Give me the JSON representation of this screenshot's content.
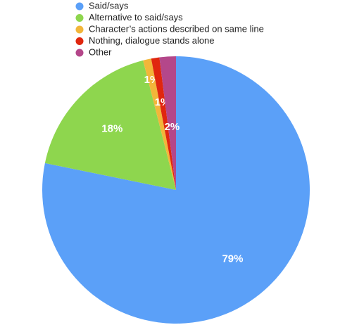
{
  "chart_data": {
    "type": "pie",
    "categories": [
      "Said/says",
      "Alternative to said/says",
      "Character’s actions described on same line",
      "Nothing, dialogue stands alone",
      "Other"
    ],
    "values": [
      79,
      18,
      1,
      1,
      2
    ],
    "value_labels": [
      "79%",
      "18%",
      "1%",
      "1%",
      "2%"
    ],
    "colors": [
      "#5ba0f8",
      "#8ed64e",
      "#f2b63a",
      "#e0270f",
      "#b4478a"
    ],
    "legend": "top"
  }
}
